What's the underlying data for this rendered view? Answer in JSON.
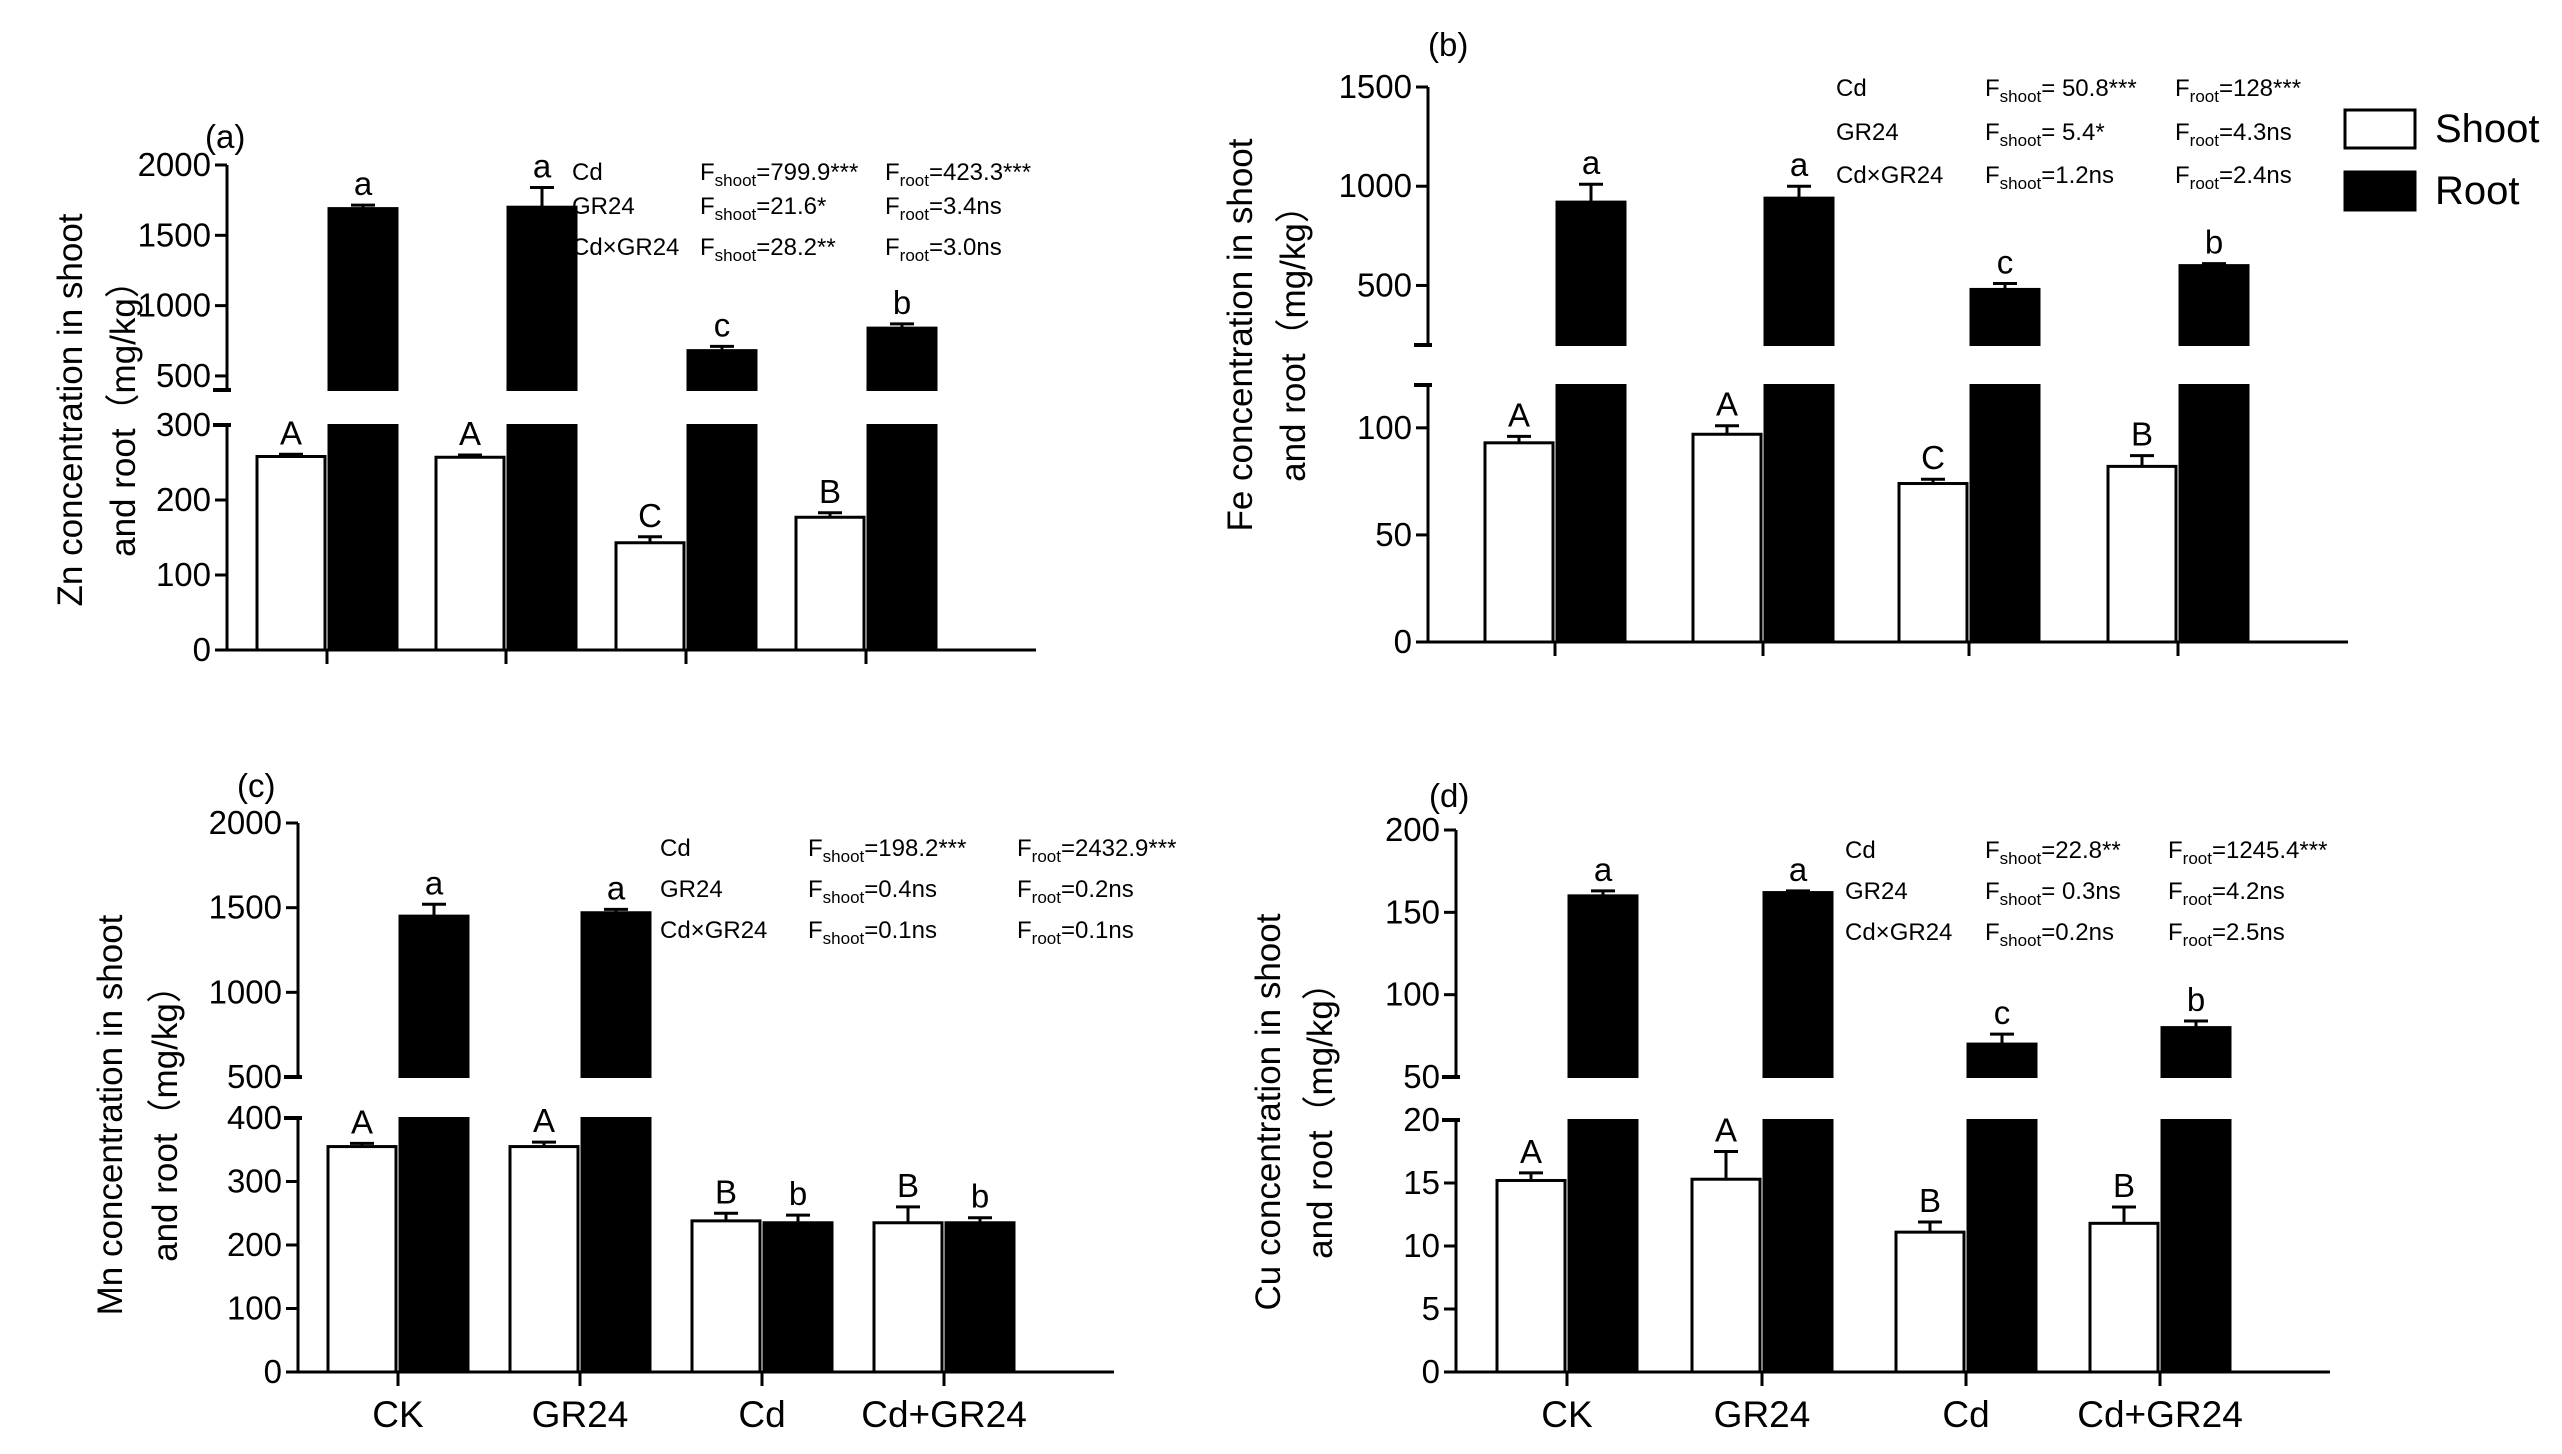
{
  "chart_data": [
    {
      "type": "bar",
      "panel_label": "(a)",
      "ylabel_line1": "Zn concentration in shoot",
      "ylabel_line2": "and root（mg/kg）",
      "categories": [
        "CK",
        "GR24",
        "Cd",
        "Cd+GR24"
      ],
      "show_xticklabels": false,
      "axis_break": {
        "lower_range": [
          0,
          300
        ],
        "upper_range": [
          400,
          2000
        ]
      },
      "lower_ticks": [
        0,
        100,
        200,
        300
      ],
      "upper_ticks": [
        500,
        1000,
        1500,
        2000
      ],
      "series": [
        {
          "name": "Shoot",
          "color": "#ffffff",
          "values": [
            258,
            257,
            143,
            177
          ],
          "errors": [
            3,
            3,
            8,
            6
          ],
          "letters": [
            "A",
            "A",
            "C",
            "B"
          ]
        },
        {
          "name": "Root",
          "color": "#000000",
          "values": [
            1690,
            1700,
            680,
            840
          ],
          "errors": [
            25,
            140,
            30,
            30
          ],
          "letters": [
            "a",
            "a",
            "c",
            "b"
          ]
        }
      ],
      "stats": [
        {
          "factor": "Cd",
          "shoot": "=799.9***",
          "root": "=423.3***"
        },
        {
          "factor": "GR24",
          "shoot": "=21.6*",
          "root": "=3.4ns"
        },
        {
          "factor": "Cd×GR24",
          "shoot": "=28.2**",
          "root": "=3.0ns"
        }
      ]
    },
    {
      "type": "bar",
      "panel_label": "(b)",
      "ylabel_line1": "Fe concentration in shoot",
      "ylabel_line2": "and root（mg/kg）",
      "categories": [
        "CK",
        "GR24",
        "Cd",
        "Cd+GR24"
      ],
      "show_xticklabels": false,
      "axis_break": {
        "lower_range": [
          0,
          120
        ],
        "upper_range": [
          200,
          1500
        ]
      },
      "lower_ticks": [
        0,
        50,
        100
      ],
      "upper_ticks": [
        500,
        1000,
        1500
      ],
      "series": [
        {
          "name": "Shoot",
          "color": "#ffffff",
          "values": [
            93,
            97,
            74,
            82
          ],
          "errors": [
            3,
            4,
            2,
            5
          ],
          "letters": [
            "A",
            "A",
            "C",
            "B"
          ]
        },
        {
          "name": "Root",
          "color": "#000000",
          "values": [
            920,
            940,
            480,
            600
          ],
          "errors": [
            90,
            60,
            30,
            10
          ],
          "letters": [
            "a",
            "a",
            "c",
            "b"
          ]
        }
      ],
      "stats": [
        {
          "factor": "Cd",
          "shoot": "= 50.8***",
          "root": "=128***"
        },
        {
          "factor": "GR24",
          "shoot": "= 5.4*",
          "root": "=4.3ns"
        },
        {
          "factor": "Cd×GR24",
          "shoot": "=1.2ns",
          "root": "=2.4ns"
        }
      ]
    },
    {
      "type": "bar",
      "panel_label": "(c)",
      "ylabel_line1": "Mn concentration in shoot",
      "ylabel_line2": "and root（mg/kg）",
      "categories": [
        "CK",
        "GR24",
        "Cd",
        "Cd+GR24"
      ],
      "show_xticklabels": true,
      "axis_break": {
        "lower_range": [
          0,
          400
        ],
        "upper_range": [
          500,
          2000
        ]
      },
      "lower_ticks": [
        0,
        100,
        200,
        300,
        400
      ],
      "upper_ticks": [
        500,
        1000,
        1500,
        2000
      ],
      "series": [
        {
          "name": "Shoot",
          "color": "#ffffff",
          "values": [
            355,
            355,
            238,
            235
          ],
          "errors": [
            5,
            7,
            12,
            25
          ],
          "letters": [
            "A",
            "A",
            "B",
            "B"
          ]
        },
        {
          "name": "Root",
          "color": "#000000",
          "values": [
            1450,
            1470,
            235,
            235
          ],
          "errors": [
            70,
            20,
            12,
            8
          ],
          "letters": [
            "a",
            "a",
            "b",
            "b"
          ]
        }
      ],
      "stats": [
        {
          "factor": "Cd",
          "shoot": "=198.2***",
          "root": "=2432.9***"
        },
        {
          "factor": "GR24",
          "shoot": "=0.4ns",
          "root": "=0.2ns"
        },
        {
          "factor": "Cd×GR24",
          "shoot": "=0.1ns",
          "root": "=0.1ns"
        }
      ]
    },
    {
      "type": "bar",
      "panel_label": "(d)",
      "ylabel_line1": "Cu concentration in shoot",
      "ylabel_line2": "and root（mg/kg）",
      "categories": [
        "CK",
        "GR24",
        "Cd",
        "Cd+GR24"
      ],
      "show_xticklabels": true,
      "axis_break": {
        "lower_range": [
          0,
          20
        ],
        "upper_range": [
          50,
          200
        ]
      },
      "lower_ticks": [
        0,
        5,
        10,
        15,
        20
      ],
      "upper_ticks": [
        50,
        100,
        150,
        200
      ],
      "series": [
        {
          "name": "Shoot",
          "color": "#ffffff",
          "values": [
            15.2,
            15.3,
            11.1,
            11.8
          ],
          "errors": [
            0.6,
            2.2,
            0.8,
            1.3
          ],
          "letters": [
            "A",
            "A",
            "B",
            "B"
          ]
        },
        {
          "name": "Root",
          "color": "#000000",
          "values": [
            160,
            162,
            70,
            80
          ],
          "errors": [
            3,
            1,
            6,
            4
          ],
          "letters": [
            "a",
            "a",
            "c",
            "b"
          ]
        }
      ],
      "stats": [
        {
          "factor": "Cd",
          "shoot": "=22.8**",
          "root": "=1245.4***"
        },
        {
          "factor": "GR24",
          "shoot": "= 0.3ns",
          "root": "=4.2ns"
        },
        {
          "factor": "Cd×GR24",
          "shoot": "=0.2ns",
          "root": "=2.5ns"
        }
      ]
    }
  ],
  "legend": {
    "items": [
      {
        "label": "Shoot",
        "color": "#ffffff"
      },
      {
        "label": "Root",
        "color": "#000000"
      }
    ]
  },
  "stat_labels": {
    "f": "F",
    "shoot_sub": "shoot",
    "root_sub": "root"
  }
}
